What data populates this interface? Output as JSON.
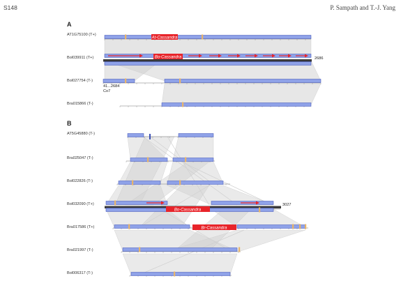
{
  "header": {
    "page": "S148",
    "authors": "P. Sampath and T.-J. Yang"
  },
  "panel_a": {
    "letter": "A",
    "genes": [
      "AT1G75100 (T+)",
      "Bol039911 (T+)",
      "Bol027754 (T-)",
      "Bra015866 (T-)"
    ],
    "tags": [
      "At-Cassandra",
      "Bo-Cassandra"
    ],
    "end_value": "2686",
    "range_label": "41...2684",
    "sub_label": "Co7"
  },
  "panel_b": {
    "letter": "B",
    "genes": [
      "AT5G45880 (T-)",
      "Bra025047 (T-)",
      "Bol022826 (T-)",
      "Bol032090 (T+)",
      "Bra017586 (T+)",
      "Bra021997 (T-)",
      "Bol006317 (T-)"
    ],
    "tags": [
      "Bo-Cassandra",
      "Br-Cassandra"
    ],
    "end_value": "3027"
  },
  "colors": {
    "exon": "#8fa2e8",
    "exon_edge": "#3b4fb5",
    "cassandra": "#e8242a",
    "ref_bar": "#3a3a3a",
    "link": "#d0d0d0",
    "marker": "#e8b46a"
  }
}
